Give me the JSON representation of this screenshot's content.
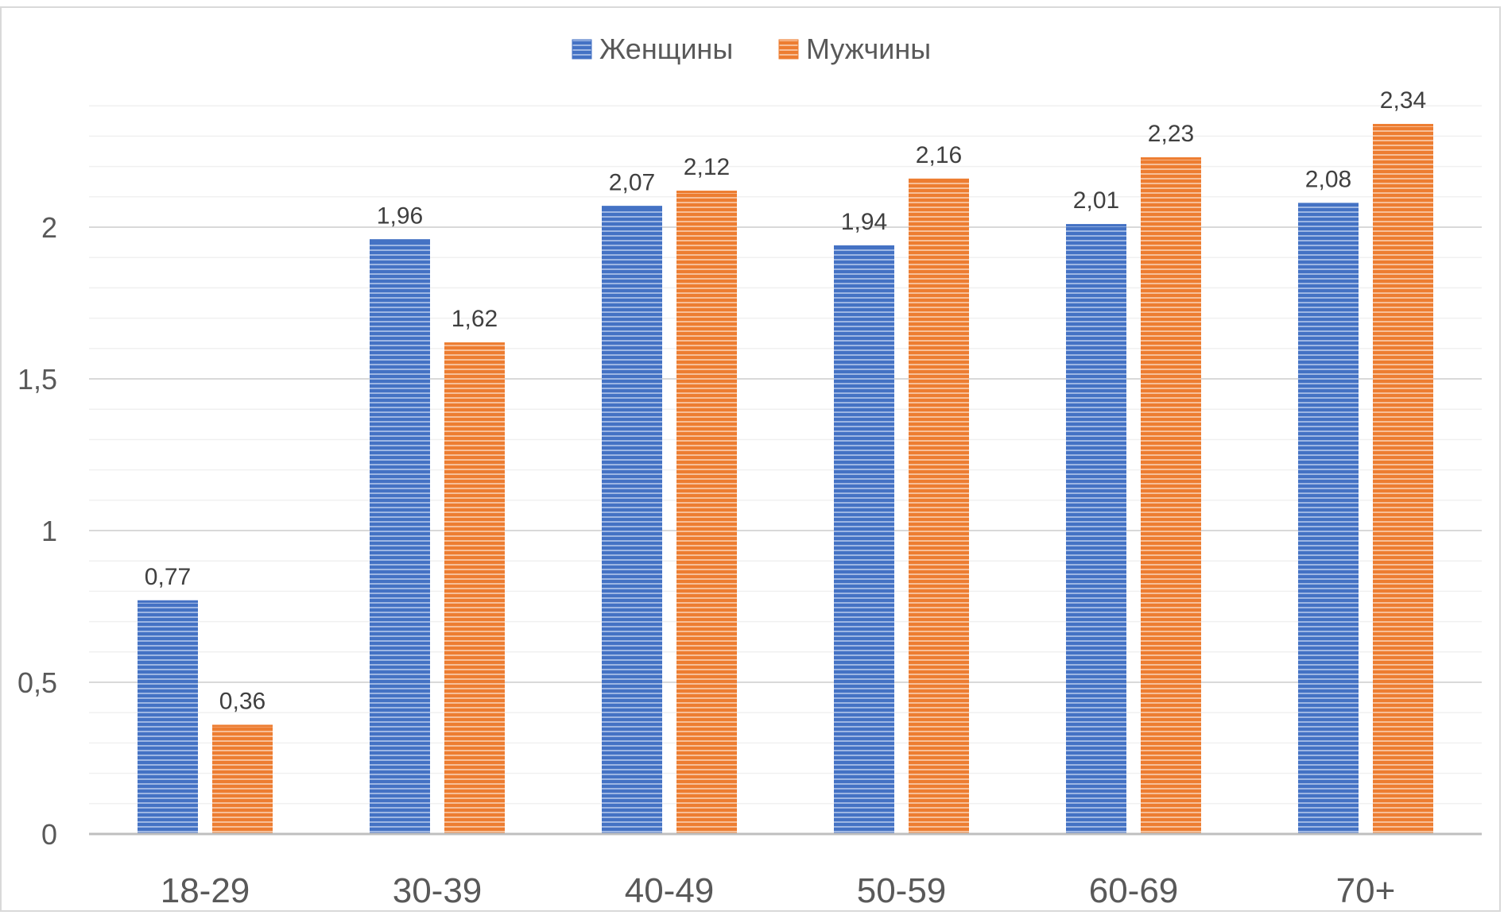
{
  "chart_data": {
    "type": "bar",
    "title": "",
    "xlabel": "",
    "ylabel": "",
    "categories": [
      "18-29",
      "30-39",
      "40-49",
      "50-59",
      "60-69",
      "70+"
    ],
    "series": [
      {
        "name": "Женщины",
        "values": [
          0.77,
          1.96,
          2.07,
          1.94,
          2.01,
          2.08
        ],
        "labels": [
          "0,77",
          "1,96",
          "2,07",
          "1,94",
          "2,01",
          "2,08"
        ],
        "color": "#4472c4"
      },
      {
        "name": "Мужчины",
        "values": [
          0.36,
          1.62,
          2.12,
          2.16,
          2.23,
          2.34
        ],
        "labels": [
          "0,36",
          "1,62",
          "2,12",
          "2,16",
          "2,23",
          "2,34"
        ],
        "color": "#ed7d31"
      }
    ],
    "ylim": [
      0,
      2.5
    ],
    "yticks": [
      0,
      0.5,
      1,
      1.5,
      2
    ],
    "ytick_labels": [
      "0",
      "0,5",
      "1",
      "1,5",
      "2"
    ],
    "grid": true,
    "legend_position": "top"
  }
}
